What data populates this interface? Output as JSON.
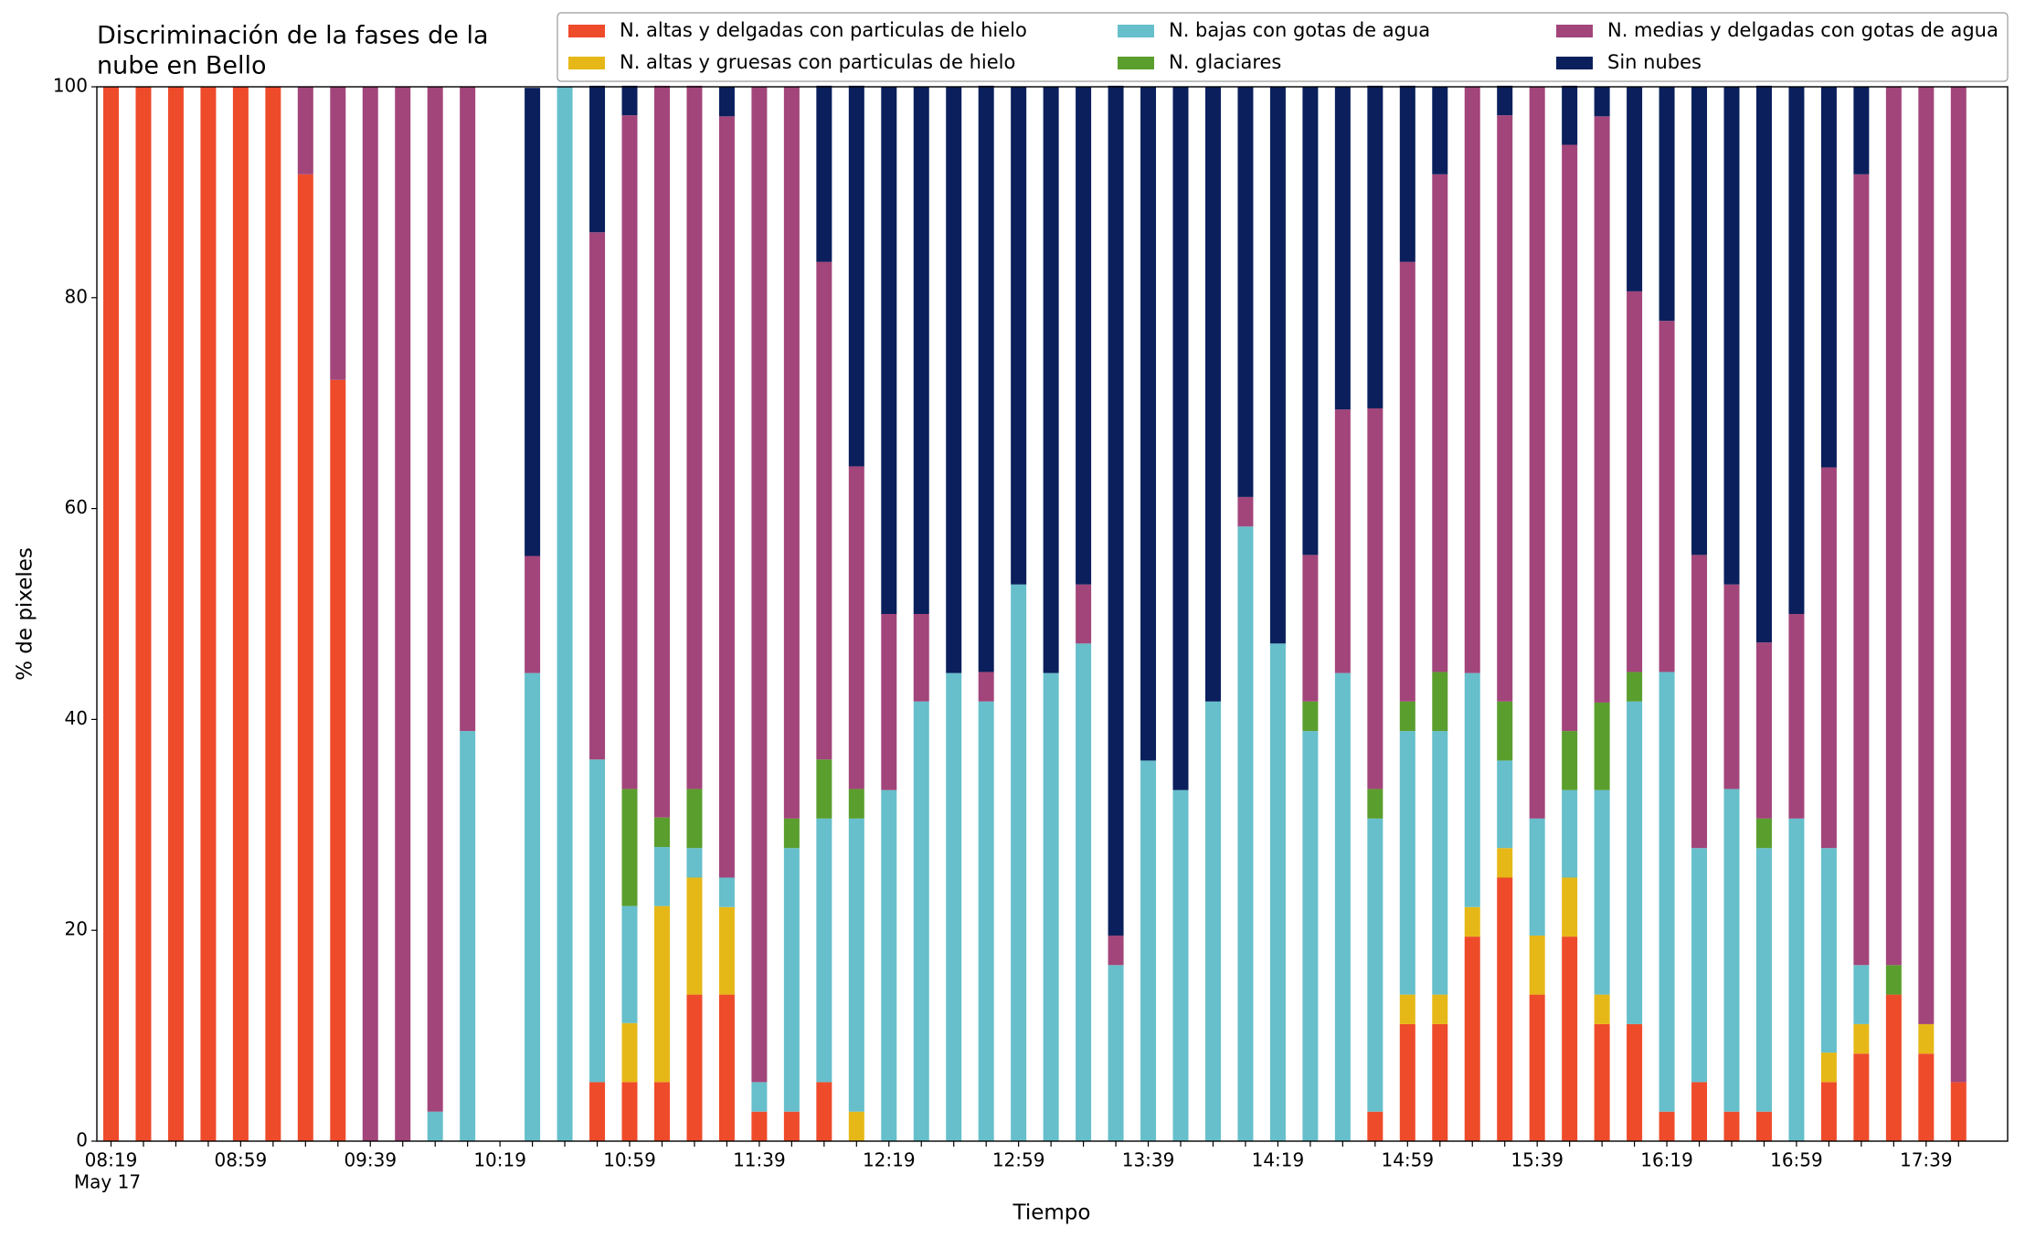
{
  "chart_data": {
    "type": "stacked_bar",
    "title": [
      "Discriminación de la fases de la",
      "nube en Bello"
    ],
    "xlabel": "Tiempo",
    "ylabel": "% de pixeles",
    "x_sublabel": "May 17",
    "categories": [
      "08:19",
      null,
      null,
      null,
      "08:59",
      null,
      null,
      null,
      "09:39",
      null,
      null,
      null,
      "10:19",
      null,
      null,
      null,
      "10:59",
      null,
      null,
      null,
      "11:39",
      null,
      null,
      null,
      "12:19",
      null,
      null,
      null,
      "12:59",
      null,
      null,
      null,
      "13:39",
      null,
      null,
      null,
      "14:19",
      null,
      null,
      null,
      "14:59",
      null,
      null,
      null,
      "15:39",
      null,
      null,
      null,
      "16:19",
      null,
      null,
      null,
      "16:59",
      null,
      null,
      null,
      "17:39",
      null
    ],
    "ylim": [
      0,
      100
    ],
    "yticks": [
      0,
      20,
      40,
      60,
      80,
      100
    ],
    "grid": false,
    "legend": "upper right",
    "series": [
      {
        "name": "N. altas y delgadas con particulas de hielo",
        "color": "#ee4b2b",
        "values": [
          100,
          100,
          100,
          100,
          100,
          100,
          91.7,
          72.2,
          0,
          0,
          0,
          0,
          0,
          0,
          0,
          5.6,
          5.6,
          5.6,
          13.9,
          13.9,
          2.8,
          2.8,
          5.6,
          0,
          0,
          0,
          0,
          0,
          0,
          0,
          0,
          0,
          0,
          0,
          0,
          0,
          0,
          0,
          0,
          2.8,
          11.1,
          11.1,
          19.4,
          25,
          13.9,
          19.4,
          11.1,
          11.1,
          2.8,
          5.6,
          2.8,
          2.8,
          0,
          5.6,
          8.3,
          13.9,
          8.3,
          5.6
        ]
      },
      {
        "name": "N. altas y gruesas con particulas de hielo",
        "color": "#e6b817",
        "values": [
          0,
          0,
          0,
          0,
          0,
          0,
          0,
          0,
          0,
          0,
          0,
          0,
          0,
          0,
          0,
          0,
          5.6,
          16.7,
          11.1,
          8.3,
          0,
          0,
          0,
          2.8,
          0,
          0,
          0,
          0,
          0,
          0,
          0,
          0,
          0,
          0,
          0,
          0,
          0,
          0,
          0,
          0,
          2.8,
          2.8,
          2.8,
          2.8,
          5.6,
          5.6,
          2.8,
          0,
          0,
          0,
          0,
          0,
          0,
          2.8,
          2.8,
          0,
          2.8,
          0
        ]
      },
      {
        "name": "N. bajas con gotas de agua",
        "color": "#66bfcb",
        "values": [
          0,
          0,
          0,
          0,
          0,
          0,
          0,
          0,
          0,
          0,
          2.8,
          38.9,
          0,
          44.4,
          100,
          30.6,
          11.1,
          5.6,
          2.8,
          2.8,
          2.8,
          25,
          25,
          27.8,
          33.3,
          41.7,
          44.4,
          41.7,
          52.8,
          44.4,
          47.2,
          16.7,
          36.1,
          33.3,
          41.7,
          58.3,
          47.2,
          38.9,
          44.4,
          27.8,
          25,
          25,
          22.2,
          8.3,
          11.1,
          8.3,
          19.4,
          30.6,
          41.7,
          22.2,
          30.6,
          25,
          30.6,
          19.4,
          5.6,
          0,
          0,
          0
        ]
      },
      {
        "name": "N. glaciares",
        "color": "#5a9e2d",
        "values": [
          0,
          0,
          0,
          0,
          0,
          0,
          0,
          0,
          0,
          0,
          0,
          0,
          0,
          0,
          0,
          0,
          11.1,
          2.8,
          5.6,
          0,
          0,
          2.8,
          5.6,
          2.8,
          0,
          0,
          0,
          0,
          0,
          0,
          0,
          0,
          0,
          0,
          0,
          0,
          0,
          2.8,
          0,
          2.8,
          2.8,
          5.6,
          0,
          5.6,
          0,
          5.6,
          8.3,
          2.8,
          0,
          0,
          0,
          2.8,
          0,
          0,
          0,
          2.8,
          0,
          0
        ]
      },
      {
        "name": "N. medias y delgadas con gotas de agua",
        "color": "#a2457a",
        "values": [
          0,
          0,
          0,
          0,
          0,
          0,
          8.3,
          27.8,
          100,
          100,
          97.2,
          61.1,
          0,
          11.1,
          0,
          50,
          63.9,
          69.4,
          66.7,
          72.2,
          94.4,
          69.4,
          47.2,
          30.6,
          16.7,
          8.3,
          0,
          2.8,
          0,
          0,
          5.6,
          2.8,
          0,
          0,
          0,
          2.8,
          0,
          13.9,
          25,
          36.1,
          41.7,
          47.2,
          55.6,
          55.6,
          69.4,
          55.6,
          55.6,
          36.1,
          33.3,
          27.8,
          19.4,
          16.7,
          19.4,
          36.1,
          75,
          83.3,
          88.9,
          94.4
        ]
      },
      {
        "name": "Sin nubes",
        "color": "#0a1f5c",
        "values": [
          0,
          0,
          0,
          0,
          0,
          0,
          0,
          0,
          0,
          0,
          0,
          0,
          0,
          44.4,
          0,
          13.9,
          2.8,
          0,
          0,
          2.8,
          0,
          0,
          16.7,
          36.1,
          50,
          50,
          55.6,
          55.6,
          47.2,
          55.6,
          47.2,
          80.6,
          63.9,
          66.7,
          58.3,
          38.9,
          52.8,
          44.4,
          30.6,
          30.6,
          16.7,
          8.3,
          0,
          2.8,
          0,
          5.6,
          2.8,
          19.4,
          22.2,
          44.4,
          47.2,
          52.8,
          50,
          36.1,
          8.3,
          0,
          0,
          0
        ]
      }
    ]
  }
}
